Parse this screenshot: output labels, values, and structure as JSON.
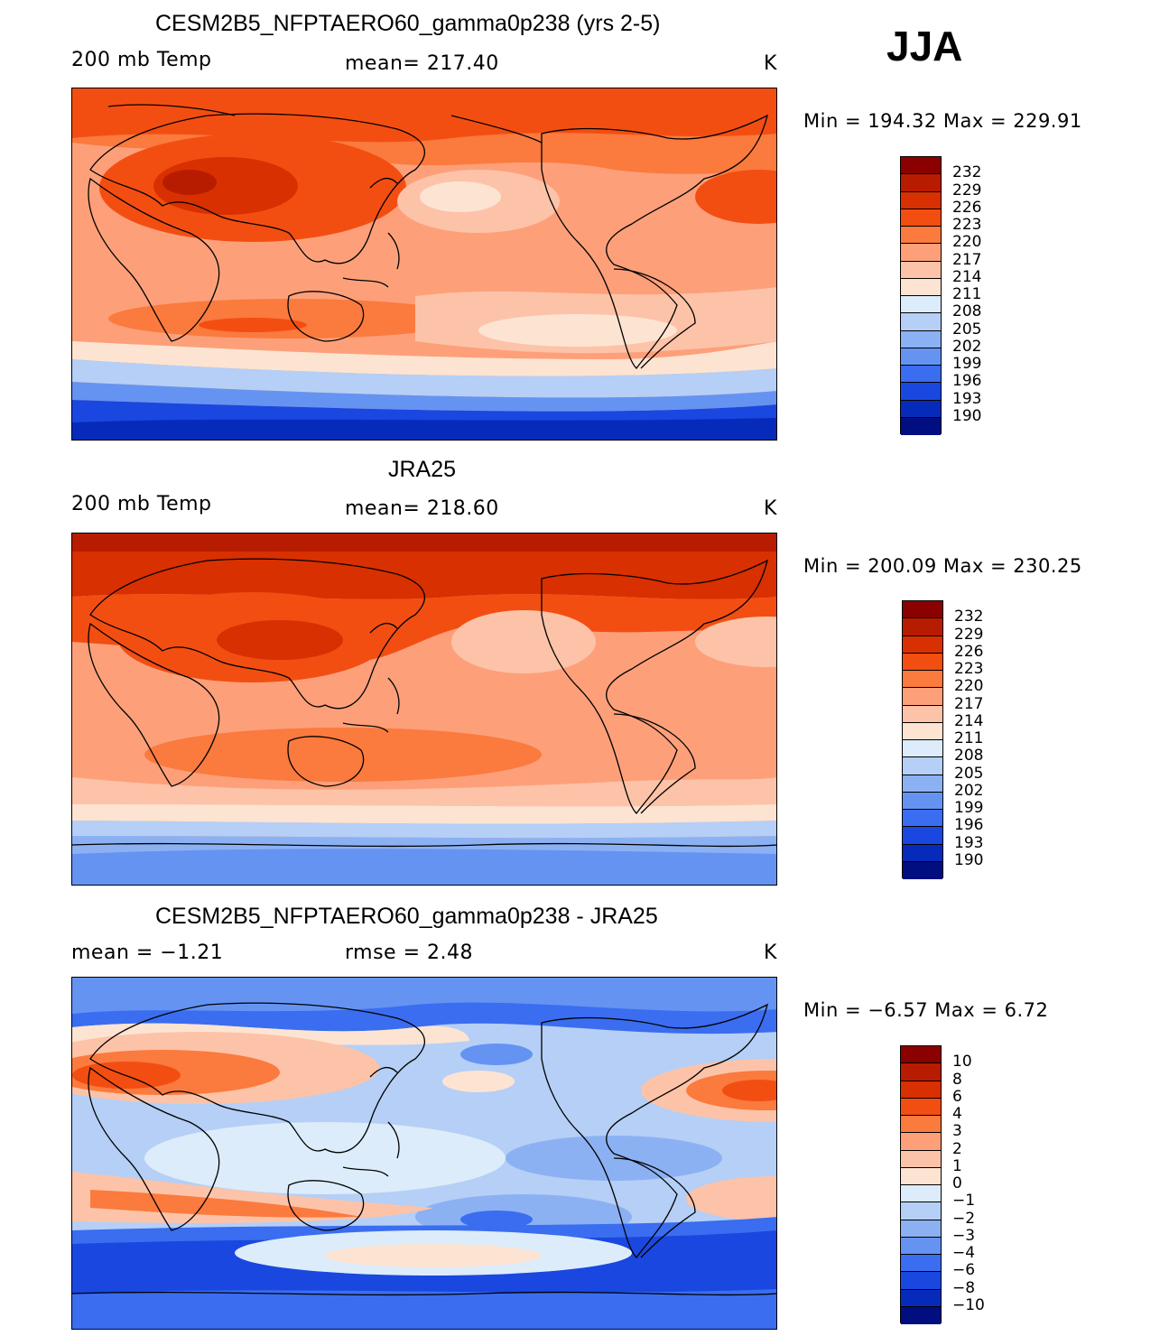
{
  "season": "JJA",
  "panels": [
    {
      "title": "CESM2B5_NFPTAERO60_gamma0p238 (yrs 2-5)",
      "left_label": "200 mb Temp",
      "center_label": "mean= 217.40",
      "units": "K",
      "minmax": "Min = 194.32 Max = 229.91",
      "min": 194.32,
      "max": 229.91,
      "mean": 217.4,
      "colorbar": {
        "labels": [
          "232",
          "229",
          "226",
          "223",
          "220",
          "217",
          "214",
          "211",
          "208",
          "205",
          "202",
          "199",
          "196",
          "193",
          "190"
        ],
        "colors": [
          "#8b0000",
          "#b81c00",
          "#d83000",
          "#f34e12",
          "#fb7a3e",
          "#fda07a",
          "#fdc3a8",
          "#fde4d2",
          "#dcecfa",
          "#b5cff6",
          "#8cb1f3",
          "#6593f2",
          "#3a6df0",
          "#1a47df",
          "#062bbb",
          "#000e80"
        ]
      },
      "map_field": {
        "description_values": [
          "band values from north to south in K"
        ],
        "zonal_bands": [
          226,
          223,
          220,
          217,
          217,
          220,
          217,
          214,
          205,
          199,
          193
        ]
      }
    },
    {
      "title": "JRA25",
      "left_label": "200 mb Temp",
      "center_label": "mean= 218.60",
      "units": "K",
      "minmax": "Min = 200.09 Max = 230.25",
      "min": 200.09,
      "max": 230.25,
      "mean": 218.6,
      "colorbar": {
        "labels": [
          "232",
          "229",
          "226",
          "223",
          "220",
          "217",
          "214",
          "211",
          "208",
          "205",
          "202",
          "199",
          "196",
          "193",
          "190"
        ],
        "colors": [
          "#8b0000",
          "#b81c00",
          "#d83000",
          "#f34e12",
          "#fb7a3e",
          "#fda07a",
          "#fdc3a8",
          "#fde4d2",
          "#dcecfa",
          "#b5cff6",
          "#8cb1f3",
          "#6593f2",
          "#3a6df0",
          "#1a47df",
          "#062bbb",
          "#000e80"
        ]
      },
      "map_field": {
        "zonal_bands": [
          229,
          226,
          223,
          220,
          220,
          220,
          217,
          214,
          208,
          205,
          202
        ]
      }
    },
    {
      "title": "CESM2B5_NFPTAERO60_gamma0p238 - JRA25",
      "left_label": "mean =   −1.21",
      "center_label": "rmse =    2.48",
      "units": "K",
      "minmax": "Min =   −6.57 Max =    6.72",
      "min": -6.57,
      "max": 6.72,
      "mean": -1.21,
      "rmse": 2.48,
      "colorbar": {
        "labels": [
          "10",
          "8",
          "6",
          "4",
          "3",
          "2",
          "1",
          "0",
          "−1",
          "−2",
          "−3",
          "−4",
          "−6",
          "−8",
          "−10"
        ],
        "colors": [
          "#8b0000",
          "#b81c00",
          "#d83000",
          "#f34e12",
          "#fb7a3e",
          "#fda07a",
          "#fdc3a8",
          "#fde4d2",
          "#dcecfa",
          "#b5cff6",
          "#8cb1f3",
          "#6593f2",
          "#3a6df0",
          "#1a47df",
          "#062bbb",
          "#000e80"
        ]
      },
      "map_field": {
        "zonal_bands": [
          -4,
          -2,
          3,
          -1,
          -2,
          -1,
          -2,
          -3,
          1,
          -4,
          -6
        ]
      }
    }
  ]
}
